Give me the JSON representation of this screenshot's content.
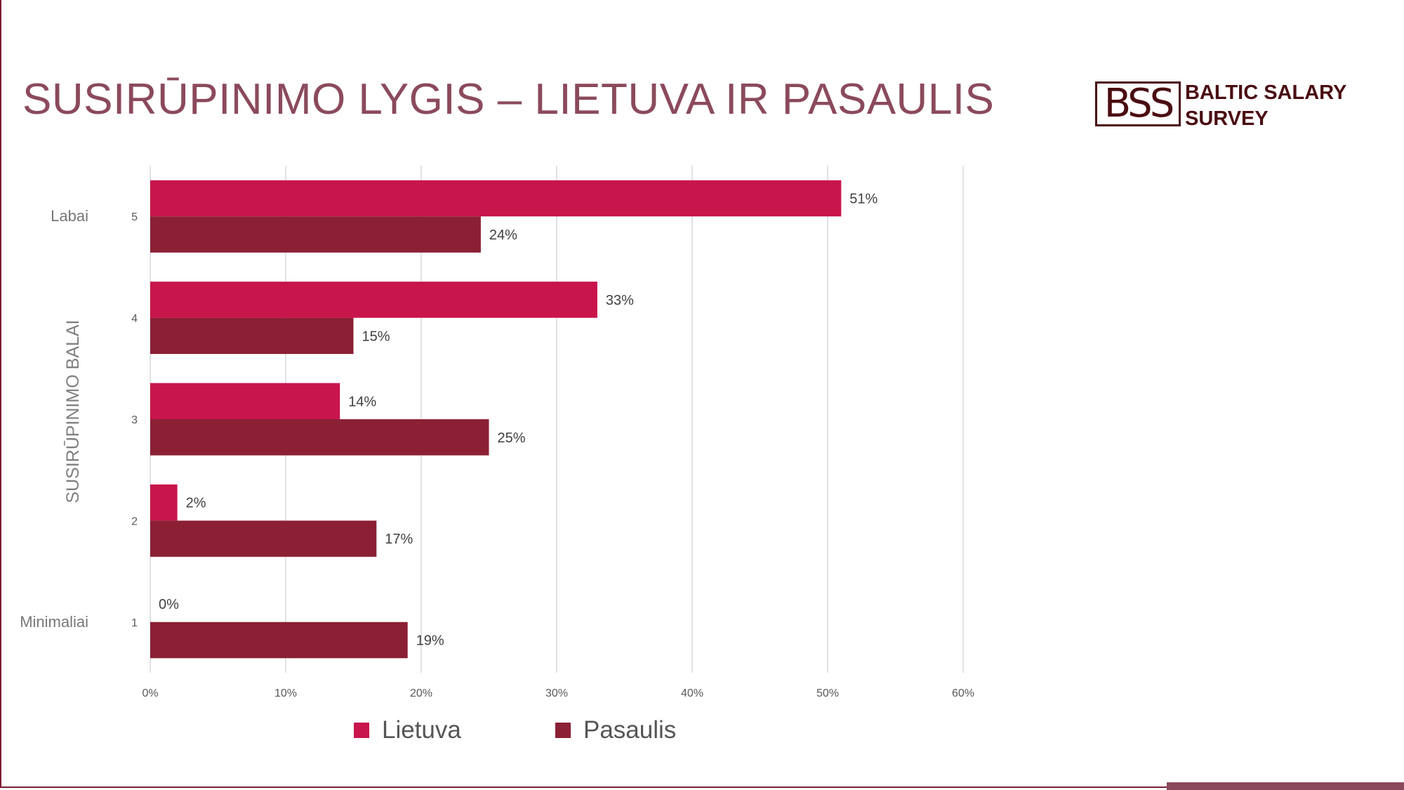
{
  "title": "SUSIRŪPINIMO LYGIS – LIETUVA IR PASAULIS",
  "logo": {
    "mark": "BSS",
    "line1": "BALTIC SALARY",
    "line2": "SURVEY"
  },
  "colors": {
    "lietuva": "#c8154b",
    "pasaulis": "#8b2035",
    "title": "#8b4a5c",
    "grid": "#d9d9d9"
  },
  "chart_data": {
    "type": "bar",
    "orientation": "horizontal",
    "categories": [
      "5",
      "4",
      "3",
      "2",
      "1"
    ],
    "category_side_labels": {
      "5": "Labai",
      "1": "Minimaliai"
    },
    "series": [
      {
        "name": "Lietuva",
        "values": [
          51,
          33,
          14,
          2,
          0
        ],
        "labels": [
          "51%",
          "33%",
          "14%",
          "2%",
          "0%"
        ]
      },
      {
        "name": "Pasaulis",
        "values": [
          24.4,
          15,
          25,
          16.7,
          19
        ],
        "labels": [
          "24%",
          "15%",
          "25%",
          "17%",
          "19%"
        ]
      }
    ],
    "xlim": [
      0,
      60
    ],
    "xticks": [
      0,
      10,
      20,
      30,
      40,
      50,
      60
    ],
    "xtick_labels": [
      "0%",
      "10%",
      "20%",
      "30%",
      "40%",
      "50%",
      "60%"
    ],
    "ylabel": "SUSIRŪPINIMO BALAI",
    "xlabel": "",
    "grid": "vertical",
    "legend_position": "bottom"
  }
}
